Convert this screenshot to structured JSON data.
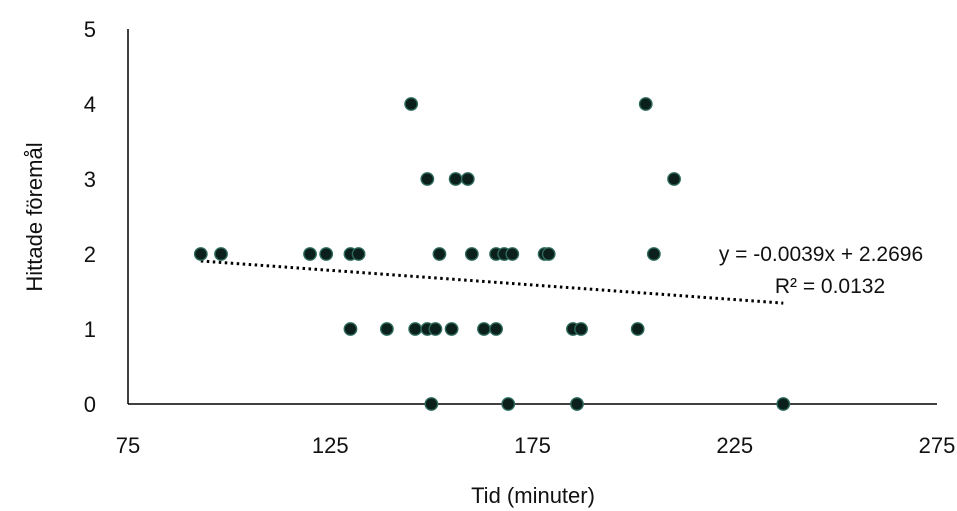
{
  "chart_data": {
    "type": "scatter",
    "title": "",
    "xlabel": "Tid (minuter)",
    "ylabel": "Hittade föremål",
    "xlim": [
      75,
      275
    ],
    "ylim": [
      0,
      5
    ],
    "x_ticks": [
      "75",
      "125",
      "175",
      "225",
      "275"
    ],
    "y_ticks": [
      "0",
      "1",
      "2",
      "3",
      "4",
      "5"
    ],
    "grid": false,
    "legend": "none",
    "marker_color": "#0b1f1b",
    "marker_edge": "#2e6b5c",
    "trendline": {
      "type": "linear",
      "slope": -0.0039,
      "intercept": 2.2696,
      "x_range": [
        93,
        237
      ],
      "equation": "y = -0.0039x + 2.2696",
      "r2_label": "R² = 0.0132",
      "color": "#000000"
    },
    "points": [
      {
        "x": 93,
        "y": 2
      },
      {
        "x": 98,
        "y": 2
      },
      {
        "x": 120,
        "y": 2
      },
      {
        "x": 124,
        "y": 2
      },
      {
        "x": 130,
        "y": 2
      },
      {
        "x": 132,
        "y": 2
      },
      {
        "x": 130,
        "y": 1
      },
      {
        "x": 139,
        "y": 1
      },
      {
        "x": 145,
        "y": 4
      },
      {
        "x": 146,
        "y": 1
      },
      {
        "x": 149,
        "y": 1
      },
      {
        "x": 149,
        "y": 3
      },
      {
        "x": 150,
        "y": 0
      },
      {
        "x": 151,
        "y": 1
      },
      {
        "x": 152,
        "y": 2
      },
      {
        "x": 155,
        "y": 1
      },
      {
        "x": 156,
        "y": 3
      },
      {
        "x": 159,
        "y": 3
      },
      {
        "x": 160,
        "y": 2
      },
      {
        "x": 163,
        "y": 1
      },
      {
        "x": 166,
        "y": 1
      },
      {
        "x": 166,
        "y": 2
      },
      {
        "x": 168,
        "y": 2
      },
      {
        "x": 169,
        "y": 0
      },
      {
        "x": 170,
        "y": 2
      },
      {
        "x": 178,
        "y": 2
      },
      {
        "x": 179,
        "y": 2
      },
      {
        "x": 185,
        "y": 1
      },
      {
        "x": 186,
        "y": 0
      },
      {
        "x": 187,
        "y": 1
      },
      {
        "x": 201,
        "y": 1
      },
      {
        "x": 203,
        "y": 4
      },
      {
        "x": 205,
        "y": 2
      },
      {
        "x": 210,
        "y": 3
      },
      {
        "x": 237,
        "y": 0
      }
    ]
  }
}
